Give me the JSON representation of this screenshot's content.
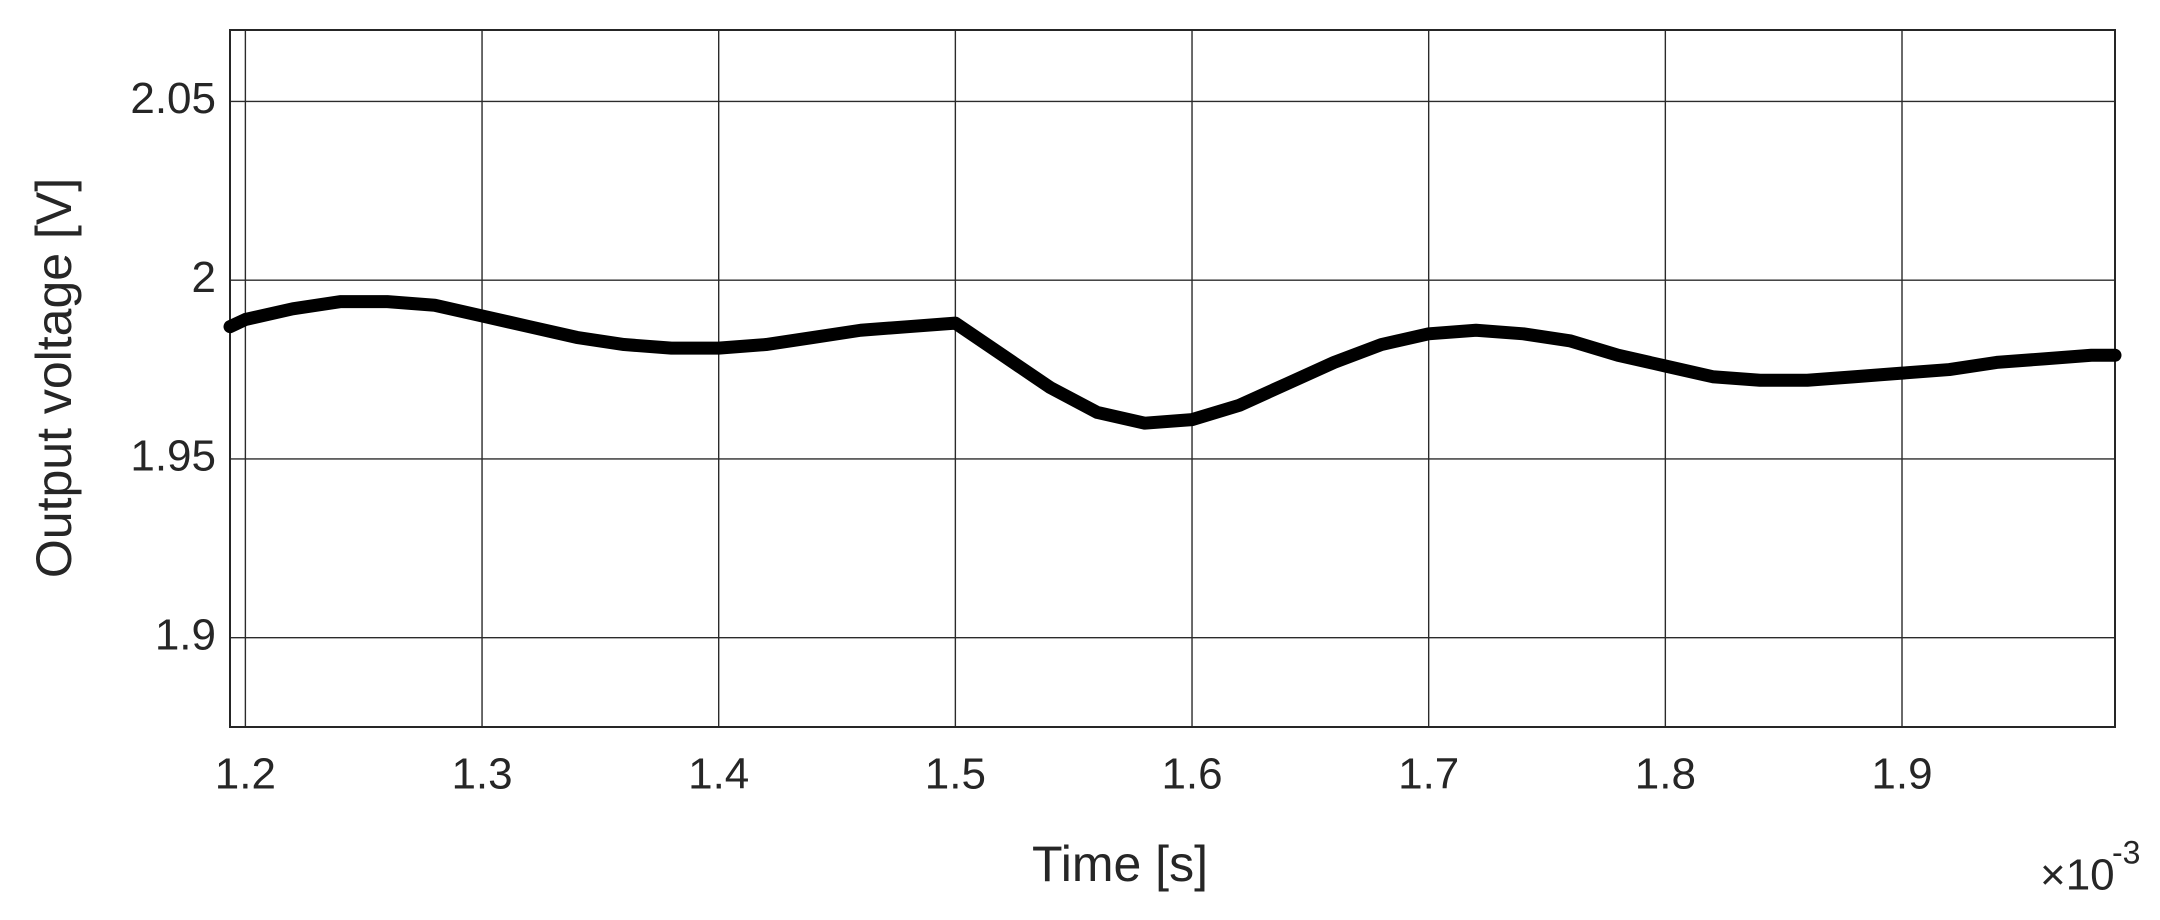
{
  "chart_data": {
    "type": "line",
    "xlabel": "Time [s]",
    "ylabel": "Output voltage [V]",
    "x_multiplier": {
      "base": "×10",
      "power": "-3"
    },
    "x": [
      1.1935,
      1.2,
      1.22,
      1.24,
      1.26,
      1.28,
      1.3,
      1.32,
      1.34,
      1.36,
      1.38,
      1.4,
      1.42,
      1.44,
      1.46,
      1.48,
      1.5,
      1.52,
      1.54,
      1.56,
      1.58,
      1.6,
      1.62,
      1.64,
      1.66,
      1.68,
      1.7,
      1.72,
      1.74,
      1.76,
      1.78,
      1.8,
      1.82,
      1.84,
      1.86,
      1.88,
      1.9,
      1.92,
      1.94,
      1.96,
      1.98,
      1.99
    ],
    "series": [
      {
        "color": "#000000",
        "values": [
          1.987,
          1.989,
          1.992,
          1.994,
          1.994,
          1.993,
          1.99,
          1.987,
          1.984,
          1.982,
          1.981,
          1.981,
          1.982,
          1.984,
          1.986,
          1.987,
          1.988,
          1.979,
          1.97,
          1.963,
          1.96,
          1.961,
          1.965,
          1.971,
          1.977,
          1.982,
          1.985,
          1.986,
          1.985,
          1.983,
          1.979,
          1.976,
          1.973,
          1.972,
          1.972,
          1.973,
          1.974,
          1.975,
          1.977,
          1.978,
          1.979,
          1.979
        ]
      }
    ],
    "xlim": [
      1.1935,
      1.99
    ],
    "ylim": [
      1.875,
      2.07
    ],
    "xticks": [
      1.2,
      1.3,
      1.4,
      1.5,
      1.6,
      1.7,
      1.8,
      1.9
    ],
    "yticks": [
      1.9,
      1.95,
      2,
      2.05
    ],
    "grid": true
  }
}
